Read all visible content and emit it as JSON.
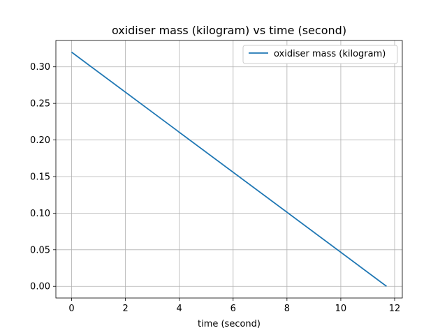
{
  "chart_data": {
    "type": "line",
    "title": "oxidiser mass (kilogram) vs time (second)",
    "xlabel": "time (second)",
    "ylabel": "",
    "xlim": [
      -0.585,
      12.285
    ],
    "ylim": [
      -0.016,
      0.336
    ],
    "xticks": [
      "0",
      "2",
      "4",
      "6",
      "8",
      "10",
      "12"
    ],
    "yticks": [
      "0.00",
      "0.05",
      "0.10",
      "0.15",
      "0.20",
      "0.25",
      "0.30"
    ],
    "grid": true,
    "legend_position": "top-right",
    "series": [
      {
        "name": "oxidiser mass (kilogram)",
        "color": "#1f77b4",
        "x": [
          0,
          11.7
        ],
        "y": [
          0.32,
          0.0
        ]
      }
    ]
  }
}
